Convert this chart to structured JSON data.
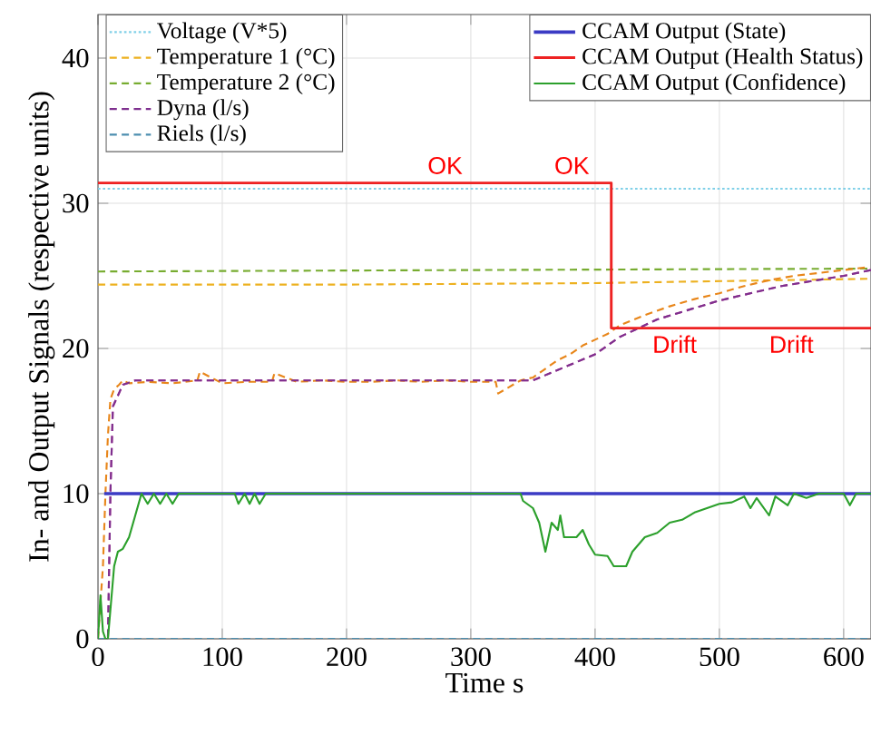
{
  "chart_data": {
    "type": "line",
    "xlabel": "Time  s",
    "ylabel": "In- and Output Signals (respective units)",
    "xlim": [
      0,
      622
    ],
    "ylim": [
      0,
      43
    ],
    "xticks": [
      0,
      100,
      200,
      300,
      400,
      500,
      600
    ],
    "yticks": [
      0,
      10,
      20,
      30,
      40
    ],
    "grid": true,
    "legend": "top",
    "marker": "none",
    "annotations": [
      "OK",
      "OK",
      "Drift",
      "Drift"
    ],
    "series": [
      {
        "name": "Voltage (V*5)",
        "color": "#80d0e8",
        "line_style": "dotted",
        "x": [
          0,
          622
        ],
        "values": [
          31.0,
          31.0
        ]
      },
      {
        "name": "Temperature 1 (°C)",
        "color": "#edb120",
        "line_style": "dashed",
        "x": [
          0,
          200,
          400,
          622
        ],
        "values": [
          24.4,
          24.4,
          24.5,
          24.8
        ]
      },
      {
        "name": "Temperature 2 (°C)",
        "color": "#77ac30",
        "line_style": "dashed",
        "x": [
          0,
          300,
          622
        ],
        "values": [
          25.3,
          25.4,
          25.5
        ]
      },
      {
        "color": "#c0479a",
        "line_style": "dashed",
        "x": [
          0,
          8,
          10,
          12,
          20,
          30,
          350,
          400,
          420,
          450,
          500,
          550,
          600,
          622
        ],
        "values": [
          0,
          0,
          10,
          16,
          17.5,
          17.8,
          17.8,
          19.6,
          20.8,
          22.0,
          23.3,
          24.3,
          25.0,
          25.4
        ]
      },
      {
        "color": "#e8861a",
        "line_style": "dashed",
        "x": [
          0,
          4,
          6,
          8,
          10,
          13,
          17,
          20,
          25,
          40,
          60,
          80,
          82,
          100,
          120,
          140,
          142,
          160,
          180,
          200,
          220,
          240,
          260,
          280,
          300,
          320,
          322,
          340,
          350,
          360,
          370,
          380,
          390,
          400,
          410,
          420,
          440,
          460,
          480,
          500,
          520,
          540,
          560,
          580,
          600,
          620
        ],
        "values": [
          0,
          5,
          10,
          14,
          16.5,
          17.2,
          17.5,
          17.8,
          17.6,
          17.7,
          17.6,
          17.8,
          18.4,
          17.6,
          17.7,
          17.7,
          18.3,
          17.7,
          17.8,
          17.7,
          17.7,
          17.8,
          17.7,
          17.8,
          17.7,
          17.7,
          16.9,
          17.8,
          18.0,
          18.6,
          19.2,
          19.6,
          20.2,
          20.6,
          21.0,
          21.6,
          22.3,
          22.9,
          23.4,
          23.8,
          24.3,
          24.7,
          25.0,
          25.2,
          25.4,
          25.6
        ]
      },
      {
        "name": "Dyna (l/s)",
        "color": "#7e2f8e",
        "line_style": "dashed",
        "x": [
          0,
          8,
          10,
          12,
          20,
          30,
          350,
          400,
          420,
          450,
          500,
          550,
          600,
          622
        ],
        "values": [
          0,
          0,
          10,
          16,
          17.5,
          17.8,
          17.8,
          19.6,
          20.8,
          22.0,
          23.3,
          24.3,
          25.0,
          25.4
        ]
      },
      {
        "name": "Riels (l/s)",
        "color": "#4d8fb0",
        "line_style": "dashed",
        "x": [
          0,
          622
        ],
        "values": [
          0,
          0
        ]
      },
      {
        "name": "CCAM Output (State)",
        "color": "#3b3bc4",
        "line_style": "solid",
        "x": [
          5,
          622
        ],
        "values": [
          10,
          10
        ]
      },
      {
        "name": "CCAM Output (Health Status)",
        "color": "#ee2222",
        "line_style": "solid",
        "x": [
          0,
          413,
          413,
          622
        ],
        "values": [
          31.4,
          31.4,
          21.4,
          21.4
        ]
      },
      {
        "name": "CCAM Output (Confidence)",
        "color": "#2ca02c",
        "line_style": "solid",
        "x": [
          0,
          2,
          4,
          6,
          8,
          10,
          13,
          16,
          20,
          25,
          30,
          35,
          40,
          45,
          50,
          55,
          60,
          65,
          70,
          110,
          113,
          118,
          122,
          126,
          130,
          135,
          140,
          340,
          342,
          350,
          355,
          360,
          365,
          370,
          372,
          375,
          385,
          390,
          395,
          400,
          410,
          415,
          425,
          430,
          440,
          450,
          460,
          470,
          480,
          500,
          510,
          520,
          525,
          530,
          540,
          545,
          555,
          560,
          570,
          580,
          600,
          605,
          610,
          622
        ],
        "values": [
          0,
          3,
          0.5,
          0,
          0,
          2,
          5,
          6,
          6.2,
          7,
          8.5,
          10,
          9.3,
          10,
          9.3,
          10,
          9.3,
          10,
          10,
          10,
          9.3,
          10,
          9.3,
          10,
          9.3,
          10,
          10,
          10,
          9.5,
          9,
          8,
          6,
          8,
          7.5,
          8.5,
          7,
          7,
          7.5,
          6.5,
          5.8,
          5.7,
          5,
          5,
          6,
          7,
          7.3,
          8,
          8.2,
          8.7,
          9.3,
          9.4,
          9.8,
          9,
          9.7,
          8.5,
          9.8,
          9.2,
          10,
          9.7,
          10,
          10,
          9.2,
          10,
          10
        ]
      }
    ]
  }
}
